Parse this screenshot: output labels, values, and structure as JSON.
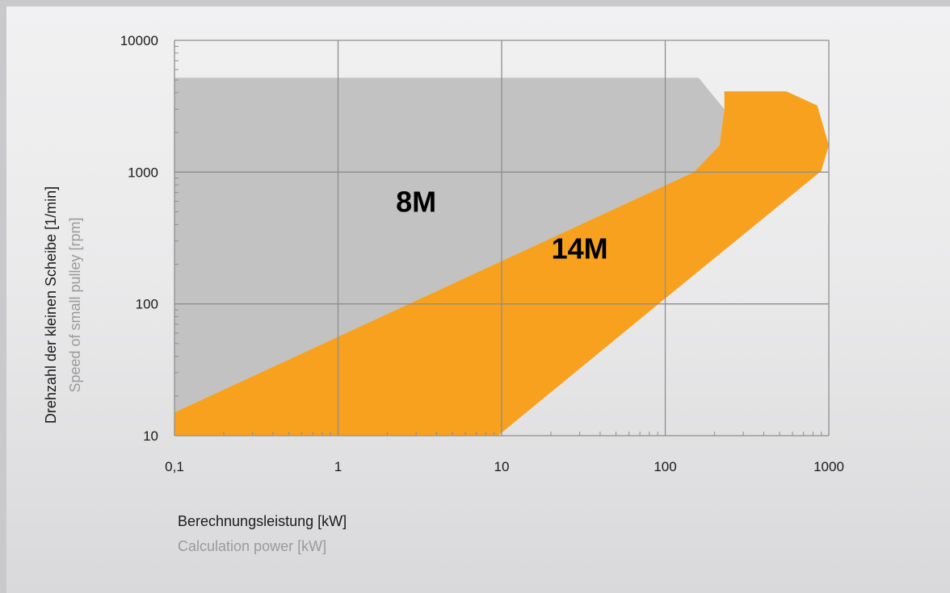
{
  "chart_data": {
    "type": "area",
    "x_scale": "log",
    "y_scale": "log",
    "xlim": [
      0.1,
      1000
    ],
    "ylim": [
      10,
      10000
    ],
    "x_ticks": [
      0.1,
      1,
      10,
      100,
      1000
    ],
    "y_ticks": [
      10,
      100,
      1000,
      10000
    ],
    "x_tick_labels": [
      "0,1",
      "1",
      "10",
      "100",
      "1000"
    ],
    "y_tick_labels": [
      "10",
      "100",
      "1000",
      "10000"
    ],
    "grid": true,
    "xlabel": "Berechnungsleistung [kW]",
    "xlabel_secondary": "Calculation power [kW]",
    "ylabel": "Drehzahl der kleinen Scheibe [1/min]",
    "ylabel_secondary": "Speed of small pulley [rpm]",
    "colors": {
      "8M": "#c1c2c1",
      "14M": "#f7a11f"
    },
    "series": [
      {
        "name": "8M",
        "label_at": {
          "x": 3,
          "y": 500
        },
        "boundary": [
          [
            0.1,
            10
          ],
          [
            0.1,
            5200
          ],
          [
            160,
            5200
          ],
          [
            230,
            3000
          ],
          [
            215,
            1600
          ],
          [
            150,
            1000
          ],
          [
            0.1,
            15
          ],
          [
            0.1,
            10
          ]
        ]
      },
      {
        "name": "14M",
        "label_at": {
          "x": 30,
          "y": 220
        },
        "boundary": [
          [
            0.1,
            10
          ],
          [
            9.5,
            10
          ],
          [
            100,
            110
          ],
          [
            900,
            1020
          ],
          [
            1000,
            1600
          ],
          [
            850,
            3200
          ],
          [
            550,
            4100
          ],
          [
            230,
            4100
          ],
          [
            230,
            3000
          ],
          [
            215,
            1600
          ],
          [
            150,
            1000
          ],
          [
            0.1,
            15
          ],
          [
            0.1,
            10
          ]
        ]
      }
    ]
  }
}
